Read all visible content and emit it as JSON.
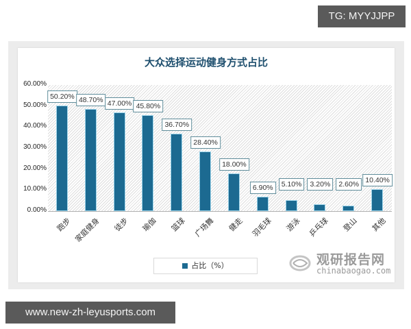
{
  "overlays": {
    "tg_badge": "TG: MYYJJPP",
    "url_badge": "www.new-zh-leyusports.com"
  },
  "chart": {
    "title": "大众选择运动健身方式占比",
    "legend": "占比（%）",
    "watermark_cn": "观研报告网",
    "watermark_en": "chinabaogao.com",
    "yticks": [
      "60.00%",
      "50.00%",
      "40.00%",
      "30.00%",
      "20.00%",
      "10.00%",
      "0.00%"
    ]
  },
  "chart_data": {
    "type": "bar",
    "title": "大众选择运动健身方式占比",
    "xlabel": "",
    "ylabel": "",
    "ylim": [
      0,
      60
    ],
    "yticks": [
      0,
      10,
      20,
      30,
      40,
      50,
      60
    ],
    "grid": false,
    "legend_position": "bottom",
    "categories": [
      "跑步",
      "家庭健身",
      "徒步",
      "瑜伽",
      "篮球",
      "广场舞",
      "健走",
      "羽毛球",
      "游泳",
      "乒乓球",
      "登山",
      "其他"
    ],
    "series": [
      {
        "name": "占比（%）",
        "color": "#1c6a91",
        "values": [
          50.2,
          48.7,
          47.0,
          45.8,
          36.7,
          28.4,
          18.0,
          6.9,
          5.1,
          3.2,
          2.6,
          10.4
        ],
        "labels": [
          "50.20%",
          "48.70%",
          "47.00%",
          "45.80%",
          "36.70%",
          "28.40%",
          "18.00%",
          "6.90%",
          "5.10%",
          "3.20%",
          "2.60%",
          "10.40%"
        ]
      }
    ]
  }
}
